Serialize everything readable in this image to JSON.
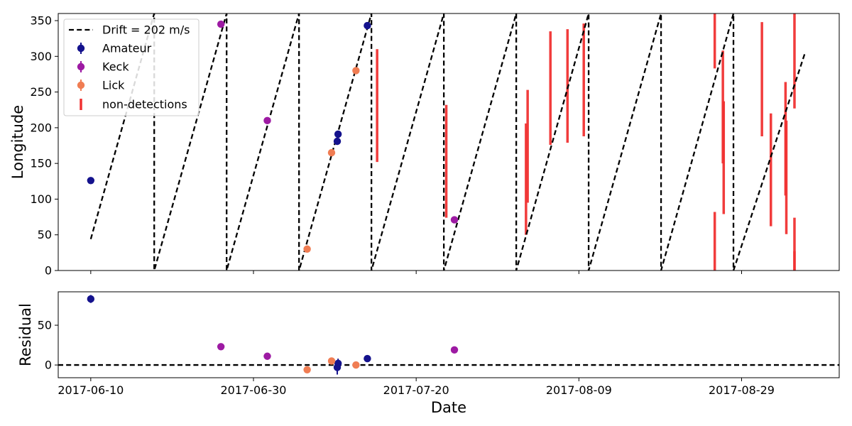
{
  "chart_data": [
    {
      "type": "scatter",
      "panel": "top",
      "ylabel": "Longitude",
      "xlabel": "",
      "ylim": [
        0,
        360
      ],
      "xlim": [
        "2017-06-06",
        "2017-09-10"
      ],
      "yticks": [
        0,
        50,
        100,
        150,
        200,
        250,
        300,
        350
      ],
      "xticks": [
        "2017-06-10",
        "2017-06-30",
        "2017-07-20",
        "2017-08-09",
        "2017-08-29"
      ],
      "show_x_tick_labels": false,
      "legend": {
        "placement": "top-left",
        "entries": [
          "Drift = 202 m/s",
          "Amateur",
          "Keck",
          "Lick",
          "non-detections"
        ]
      },
      "drift_line": {
        "name": "Drift = 202 m/s",
        "color": "#000000",
        "style": "dashed",
        "points": [
          [
            "2017-06-10",
            44
          ],
          [
            "2017-06-17.8",
            360
          ],
          [
            "2017-06-17.8",
            0
          ],
          [
            "2017-06-26.7",
            360
          ],
          [
            "2017-06-26.7",
            0
          ],
          [
            "2017-07-05.6",
            360
          ],
          [
            "2017-07-05.6",
            0
          ],
          [
            "2017-07-14.5",
            360
          ],
          [
            "2017-07-14.5",
            0
          ],
          [
            "2017-07-23.4",
            360
          ],
          [
            "2017-07-23.4",
            0
          ],
          [
            "2017-08-01.3",
            360
          ],
          [
            "2017-08-01.3",
            0
          ],
          [
            "2017-08-10.2",
            360
          ],
          [
            "2017-08-10.2",
            0
          ],
          [
            "2017-08-19.1",
            360
          ],
          [
            "2017-08-19.1",
            0
          ],
          [
            "2017-08-28.0",
            360
          ],
          [
            "2017-08-28.0",
            0
          ],
          [
            "2017-09-05.8",
            305
          ]
        ]
      },
      "series": [
        {
          "name": "Amateur",
          "color": "#14128d",
          "points": [
            {
              "x": "2017-06-10",
              "y": 126,
              "err": 4
            },
            {
              "x": "2017-07-10.3",
              "y": 181,
              "err": 5
            },
            {
              "x": "2017-07-10.4",
              "y": 191,
              "err": 4
            },
            {
              "x": "2017-07-14.0",
              "y": 343,
              "err": 5
            }
          ]
        },
        {
          "name": "Keck",
          "color": "#9d1aa3",
          "points": [
            {
              "x": "2017-06-26.0",
              "y": 345
            },
            {
              "x": "2017-07-01.7",
              "y": 210
            },
            {
              "x": "2017-07-24.7",
              "y": 71
            }
          ]
        },
        {
          "name": "Lick",
          "color": "#f07d53",
          "points": [
            {
              "x": "2017-07-06.6",
              "y": 30
            },
            {
              "x": "2017-07-09.6",
              "y": 165
            },
            {
              "x": "2017-07-12.6",
              "y": 280
            }
          ]
        }
      ],
      "non_detections": {
        "name": "non-detections",
        "color": "#f03232",
        "ranges": [
          {
            "x": "2017-07-15.2",
            "ylo": 152,
            "yhi": 310
          },
          {
            "x": "2017-07-23.7",
            "ylo": 74,
            "yhi": 232
          },
          {
            "x": "2017-08-02.7",
            "ylo": 95,
            "yhi": 253
          },
          {
            "x": "2017-08-02.5",
            "ylo": 50,
            "yhi": 206
          },
          {
            "x": "2017-08-05.5",
            "ylo": 176,
            "yhi": 335
          },
          {
            "x": "2017-08-07.6",
            "ylo": 179,
            "yhi": 338
          },
          {
            "x": "2017-08-09.6",
            "ylo": 188,
            "yhi": 346
          },
          {
            "x": "2017-08-25.7",
            "ylo": 283,
            "yhi": 360
          },
          {
            "x": "2017-08-25.7",
            "ylo": 0,
            "yhi": 82
          },
          {
            "x": "2017-08-26.7",
            "ylo": 150,
            "yhi": 308
          },
          {
            "x": "2017-08-26.8",
            "ylo": 79,
            "yhi": 237
          },
          {
            "x": "2017-08-31.5",
            "ylo": 188,
            "yhi": 348
          },
          {
            "x": "2017-09-01.6",
            "ylo": 62,
            "yhi": 220
          },
          {
            "x": "2017-09-03.4",
            "ylo": 105,
            "yhi": 264
          },
          {
            "x": "2017-09-03.5",
            "ylo": 51,
            "yhi": 210
          },
          {
            "x": "2017-09-04.5",
            "ylo": 227,
            "yhi": 360
          },
          {
            "x": "2017-09-04.5",
            "ylo": 0,
            "yhi": 74
          },
          {
            "x": "2017-09-04.5",
            "ylo": 0,
            "yhi": 27
          }
        ]
      }
    },
    {
      "type": "scatter",
      "panel": "bottom",
      "ylabel": "Residual",
      "xlabel": "Date",
      "ylim": [
        -16,
        92
      ],
      "xlim": [
        "2017-06-06",
        "2017-09-10"
      ],
      "yticks": [
        0,
        50
      ],
      "xticks": [
        "2017-06-10",
        "2017-06-30",
        "2017-07-20",
        "2017-08-09",
        "2017-08-29"
      ],
      "zero_line": {
        "y": 0,
        "color": "#000000",
        "style": "dashed"
      },
      "series": [
        {
          "name": "Amateur",
          "color": "#14128d",
          "points": [
            {
              "x": "2017-06-10",
              "y": 83,
              "err": 5
            },
            {
              "x": "2017-07-10.3",
              "y": -3,
              "err": 9
            },
            {
              "x": "2017-07-10.4",
              "y": 2,
              "err": 6
            },
            {
              "x": "2017-07-14.0",
              "y": 8,
              "err": 4
            }
          ]
        },
        {
          "name": "Keck",
          "color": "#9d1aa3",
          "points": [
            {
              "x": "2017-06-26.0",
              "y": 23
            },
            {
              "x": "2017-07-01.7",
              "y": 11
            },
            {
              "x": "2017-07-24.7",
              "y": 19
            }
          ]
        },
        {
          "name": "Lick",
          "color": "#f07d53",
          "points": [
            {
              "x": "2017-07-06.6",
              "y": -6
            },
            {
              "x": "2017-07-09.6",
              "y": 5
            },
            {
              "x": "2017-07-12.6",
              "y": 0
            }
          ]
        }
      ]
    }
  ]
}
